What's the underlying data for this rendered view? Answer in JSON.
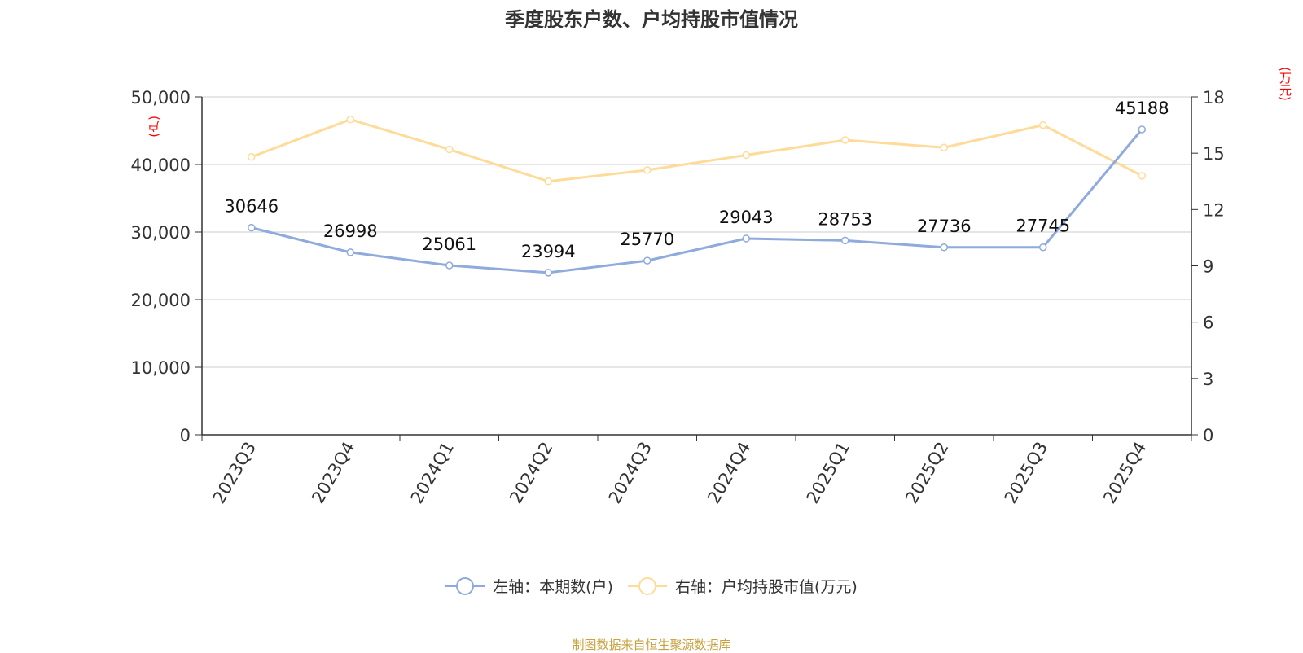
{
  "title": "季度股东户数、户均持股市值情况",
  "source": "制图数据来自恒生聚源数据库",
  "colors": {
    "series1": "#8faadc",
    "series2": "#ffdb99",
    "axis_label": "#ff0000",
    "source": "#c8a03c"
  },
  "legend": {
    "item1": "左轴：本期数(户)",
    "item2": "右轴：户均持股市值(万元)"
  },
  "chart_data": {
    "type": "line",
    "title": "季度股东户数、户均持股市值情况",
    "categories": [
      "2023Q3",
      "2023Q4",
      "2024Q1",
      "2024Q2",
      "2024Q3",
      "2024Q4",
      "2025Q1",
      "2025Q2",
      "2025Q3",
      "2025Q4"
    ],
    "y_left": {
      "label": "(户)",
      "min": 0,
      "max": 50000,
      "ticks": [
        "0",
        "10,000",
        "20,000",
        "30,000",
        "40,000",
        "50,000"
      ]
    },
    "y_right": {
      "label": "(万元)",
      "min": 0,
      "max": 18,
      "ticks": [
        "0",
        "3",
        "6",
        "9",
        "12",
        "15",
        "18"
      ]
    },
    "grid": true,
    "legend_position": "bottom",
    "series": [
      {
        "name": "左轴：本期数(户)",
        "axis": "left",
        "values": [
          30646,
          26998,
          25061,
          23994,
          25770,
          29043,
          28753,
          27736,
          27745,
          45188
        ],
        "labels": [
          "30646",
          "26998",
          "25061",
          "23994",
          "25770",
          "29043",
          "28753",
          "27736",
          "27745",
          "45188"
        ]
      },
      {
        "name": "右轴：户均持股市值(万元)",
        "axis": "right",
        "values": [
          14.8,
          16.8,
          15.2,
          13.5,
          14.1,
          14.9,
          15.7,
          15.3,
          16.5,
          13.8
        ]
      }
    ]
  }
}
